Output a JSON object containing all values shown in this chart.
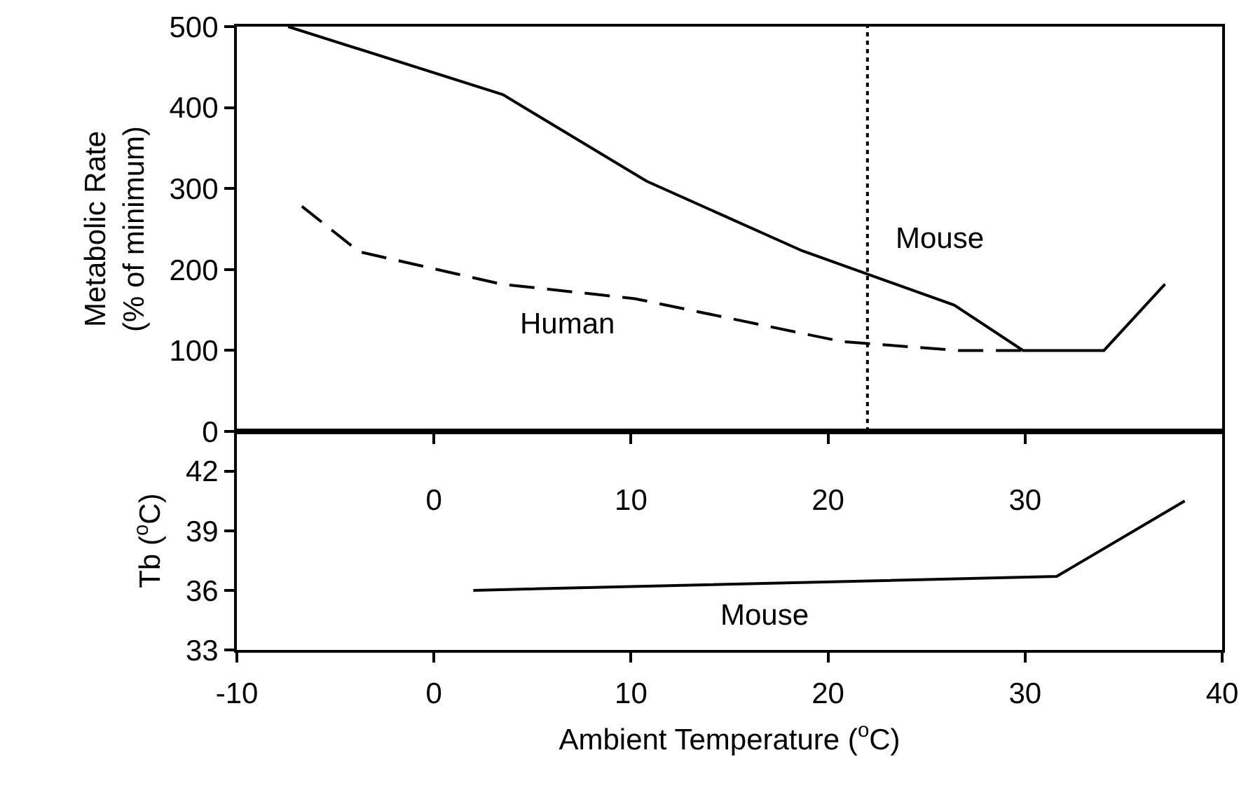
{
  "chart_data": [
    {
      "type": "line",
      "ylabel": "Metabolic Rate\n(% of minimum)",
      "xlim": [
        -10,
        40
      ],
      "xticks": [
        0,
        10,
        20,
        30
      ],
      "ylim": [
        0,
        500
      ],
      "yticks": [
        0,
        100,
        200,
        300,
        400,
        500
      ],
      "grid": false,
      "legend": false,
      "marker": "none",
      "series": [
        {
          "name": "Mouse",
          "color": "#000000",
          "line_style": "solid",
          "x": [
            -7.4,
            3.5,
            10.8,
            18.7,
            26.4,
            29.9,
            34.0,
            37.1
          ],
          "values": [
            500,
            416,
            309,
            223,
            156,
            100,
            100,
            182
          ]
        },
        {
          "name": "Human",
          "color": "#000000",
          "line_style": "dashed",
          "x": [
            -6.7,
            -3.8,
            3.4,
            10.2,
            20.7,
            26.6,
            29.9
          ],
          "values": [
            278,
            222,
            182,
            164,
            111,
            100,
            100
          ]
        }
      ],
      "ref_lines": [
        {
          "axis": "x",
          "value": 22,
          "line_style": "dotted",
          "color": "#000000"
        }
      ]
    },
    {
      "type": "line",
      "xlabel": "Ambient Temperature ($^{o}$C)",
      "ylabel": "Tb ($^{o}$C)",
      "xlim": [
        -10,
        40
      ],
      "xticks": [
        -10,
        0,
        10,
        20,
        30,
        40
      ],
      "ylim": [
        33,
        44
      ],
      "yticks": [
        33,
        36,
        39,
        42
      ],
      "grid": false,
      "legend": false,
      "marker": "none",
      "series": [
        {
          "name": "Mouse",
          "color": "#000000",
          "line_style": "solid",
          "x": [
            2.0,
            31.6,
            38.1
          ],
          "values": [
            36.0,
            36.7,
            40.5
          ]
        }
      ]
    }
  ]
}
